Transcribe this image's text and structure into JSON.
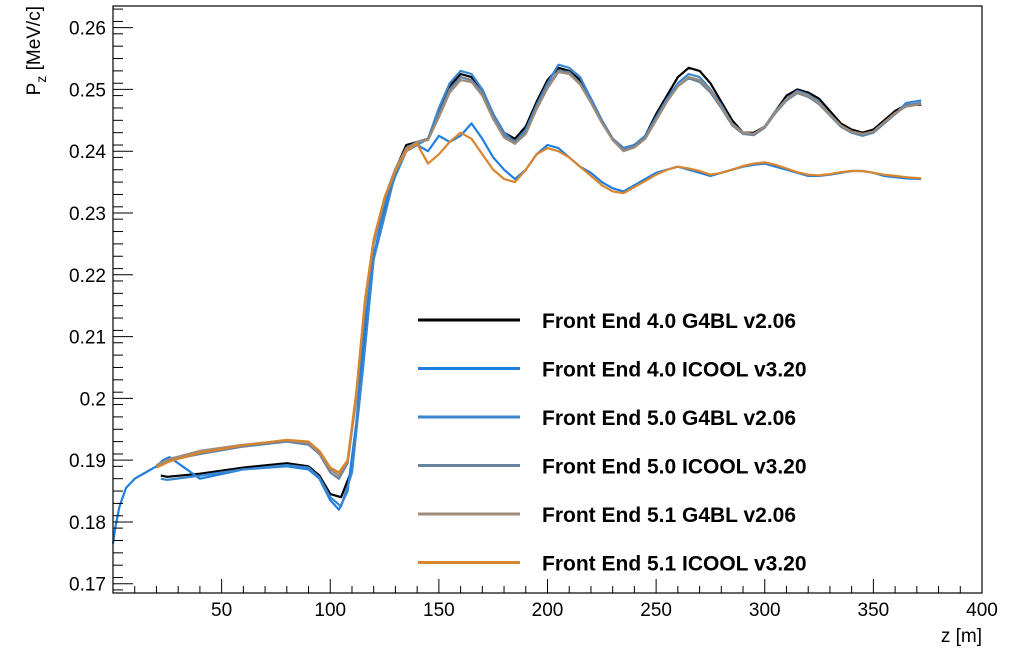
{
  "chart_data": {
    "type": "line",
    "title": "",
    "xlabel": "z [m]",
    "ylabel_main": "P",
    "ylabel_sub": "z",
    "ylabel_rest": " [MeV/c]",
    "xlim": [
      0,
      400
    ],
    "ylim": [
      0.1685,
      0.2635
    ],
    "x_ticks": [
      50,
      100,
      150,
      200,
      250,
      300,
      350,
      400
    ],
    "x_tick_labels": [
      "50",
      "100",
      "150",
      "200",
      "250",
      "300",
      "350",
      "400"
    ],
    "y_ticks": [
      0.17,
      0.18,
      0.19,
      0.2,
      0.21,
      0.22,
      0.23,
      0.24,
      0.25,
      0.26
    ],
    "y_tick_labels": [
      "0.17",
      "0.18",
      "0.19",
      "0.2",
      "0.21",
      "0.22",
      "0.23",
      "0.24",
      "0.25",
      "0.26"
    ],
    "grid": false,
    "legend_position": "lower-right",
    "series": [
      {
        "name": "Front End 4.0 G4BL v2.06",
        "color": "#000000",
        "x": [
          22,
          25,
          40,
          60,
          80,
          90,
          95,
          100,
          105,
          110,
          115,
          120,
          125,
          130,
          135,
          140,
          145,
          150,
          155,
          160,
          165,
          170,
          175,
          180,
          185,
          190,
          195,
          200,
          205,
          210,
          215,
          220,
          225,
          230,
          235,
          240,
          245,
          250,
          255,
          260,
          265,
          270,
          275,
          280,
          285,
          290,
          295,
          300,
          305,
          310,
          315,
          320,
          325,
          330,
          335,
          340,
          345,
          350,
          355,
          360,
          365,
          372
        ],
        "y": [
          0.1875,
          0.1873,
          0.1878,
          0.1888,
          0.1895,
          0.189,
          0.1875,
          0.1845,
          0.184,
          0.1885,
          0.205,
          0.223,
          0.23,
          0.237,
          0.241,
          0.2415,
          0.242,
          0.2465,
          0.2505,
          0.2525,
          0.252,
          0.25,
          0.246,
          0.243,
          0.242,
          0.244,
          0.248,
          0.2515,
          0.2535,
          0.253,
          0.2515,
          0.2485,
          0.245,
          0.242,
          0.2405,
          0.241,
          0.2425,
          0.246,
          0.249,
          0.252,
          0.2535,
          0.253,
          0.251,
          0.248,
          0.245,
          0.243,
          0.243,
          0.244,
          0.2465,
          0.249,
          0.25,
          0.2495,
          0.2485,
          0.2465,
          0.2445,
          0.2435,
          0.243,
          0.2435,
          0.245,
          0.2465,
          0.2475,
          0.2475
        ]
      },
      {
        "name": "Front End 4.0 ICOOL v3.20",
        "color": "#1f7fe0",
        "x": [
          0,
          1,
          3,
          6,
          10,
          15,
          20,
          23,
          26,
          40,
          60,
          80,
          90,
          95,
          100,
          104,
          108,
          112,
          116,
          120,
          125,
          130,
          135,
          140,
          145,
          150,
          155,
          160,
          165,
          170,
          175,
          180,
          185,
          190,
          195,
          200,
          205,
          210,
          215,
          220,
          225,
          230,
          235,
          240,
          245,
          250,
          255,
          260,
          265,
          270,
          275,
          280,
          285,
          290,
          295,
          300,
          305,
          310,
          315,
          320,
          325,
          330,
          335,
          340,
          345,
          350,
          355,
          360,
          365,
          372
        ],
        "y": [
          0.1765,
          0.179,
          0.1825,
          0.1855,
          0.187,
          0.188,
          0.189,
          0.19,
          0.1905,
          0.187,
          0.1885,
          0.189,
          0.1885,
          0.187,
          0.1835,
          0.182,
          0.185,
          0.196,
          0.212,
          0.223,
          0.231,
          0.236,
          0.24,
          0.241,
          0.24,
          0.2425,
          0.2415,
          0.2425,
          0.2445,
          0.242,
          0.239,
          0.237,
          0.2355,
          0.237,
          0.2395,
          0.241,
          0.2405,
          0.239,
          0.2375,
          0.2365,
          0.235,
          0.234,
          0.2335,
          0.2345,
          0.2355,
          0.2365,
          0.237,
          0.2375,
          0.237,
          0.2365,
          0.236,
          0.2365,
          0.237,
          0.2375,
          0.2378,
          0.238,
          0.2375,
          0.237,
          0.2365,
          0.236,
          0.236,
          0.2362,
          0.2365,
          0.2368,
          0.2368,
          0.2365,
          0.236,
          0.2358,
          0.2356,
          0.2355
        ]
      },
      {
        "name": "Front End 5.0 G4BL v2.06",
        "color": "#3a86cf",
        "x": [
          22,
          25,
          40,
          60,
          80,
          90,
          95,
          100,
          105,
          110,
          115,
          120,
          125,
          130,
          135,
          140,
          145,
          150,
          155,
          160,
          165,
          170,
          175,
          180,
          185,
          190,
          195,
          200,
          205,
          210,
          215,
          220,
          225,
          230,
          235,
          240,
          245,
          250,
          255,
          260,
          265,
          270,
          275,
          280,
          285,
          290,
          295,
          300,
          305,
          310,
          315,
          320,
          325,
          330,
          335,
          340,
          345,
          350,
          355,
          360,
          365,
          372
        ],
        "y": [
          0.187,
          0.1868,
          0.1875,
          0.1885,
          0.1892,
          0.1888,
          0.1872,
          0.184,
          0.1825,
          0.188,
          0.2045,
          0.2225,
          0.2295,
          0.2365,
          0.2405,
          0.241,
          0.242,
          0.247,
          0.251,
          0.253,
          0.2525,
          0.25,
          0.246,
          0.243,
          0.2415,
          0.2435,
          0.2475,
          0.251,
          0.254,
          0.2535,
          0.252,
          0.2485,
          0.245,
          0.242,
          0.2405,
          0.241,
          0.2425,
          0.2455,
          0.2485,
          0.251,
          0.2525,
          0.252,
          0.25,
          0.2475,
          0.2445,
          0.243,
          0.2428,
          0.244,
          0.2465,
          0.2485,
          0.2498,
          0.2492,
          0.248,
          0.246,
          0.244,
          0.243,
          0.2425,
          0.243,
          0.2445,
          0.246,
          0.2478,
          0.2482
        ]
      },
      {
        "name": "Front End 5.0 ICOOL v3.20",
        "color": "#6683a0",
        "x": [
          20,
          23,
          26,
          40,
          60,
          80,
          90,
          95,
          100,
          104,
          108,
          112,
          116,
          120,
          125,
          130,
          135,
          140,
          145,
          150,
          155,
          160,
          165,
          170,
          175,
          180,
          185,
          190,
          195,
          200,
          205,
          210,
          215,
          220,
          225,
          230,
          235,
          240,
          245,
          250,
          255,
          260,
          265,
          270,
          275,
          280,
          285,
          290,
          295,
          300,
          305,
          310,
          315,
          320,
          325,
          330,
          335,
          340,
          345,
          350,
          355,
          360,
          365,
          372
        ],
        "y": [
          0.189,
          0.1895,
          0.19,
          0.191,
          0.1922,
          0.193,
          0.1925,
          0.191,
          0.188,
          0.187,
          0.1895,
          0.2,
          0.215,
          0.225,
          0.232,
          0.237,
          0.2405,
          0.2415,
          0.242,
          0.246,
          0.25,
          0.252,
          0.2515,
          0.2495,
          0.2455,
          0.2425,
          0.2415,
          0.243,
          0.247,
          0.2505,
          0.253,
          0.2528,
          0.251,
          0.248,
          0.2448,
          0.242,
          0.2402,
          0.2408,
          0.2422,
          0.2452,
          0.2482,
          0.2505,
          0.2518,
          0.2512,
          0.2495,
          0.247,
          0.2442,
          0.2428,
          0.2426,
          0.2438,
          0.2462,
          0.2482,
          0.2494,
          0.2488,
          0.2476,
          0.2458,
          0.244,
          0.243,
          0.2426,
          0.243,
          0.2445,
          0.246,
          0.2474,
          0.2478
        ]
      },
      {
        "name": "Front End 5.1 G4BL v2.06",
        "color": "#9e8b7a",
        "x": [
          20,
          23,
          26,
          40,
          60,
          80,
          90,
          95,
          100,
          104,
          108,
          112,
          116,
          120,
          125,
          130,
          135,
          140,
          145,
          150,
          155,
          160,
          165,
          170,
          175,
          180,
          185,
          190,
          195,
          200,
          205,
          210,
          215,
          220,
          225,
          230,
          235,
          240,
          245,
          250,
          255,
          260,
          265,
          270,
          275,
          280,
          285,
          290,
          295,
          300,
          305,
          310,
          315,
          320,
          325,
          330,
          335,
          340,
          345,
          350,
          355,
          360,
          365,
          372
        ],
        "y": [
          0.1892,
          0.1897,
          0.1902,
          0.1915,
          0.1925,
          0.1932,
          0.1928,
          0.1912,
          0.1885,
          0.1875,
          0.1898,
          0.2005,
          0.2155,
          0.2255,
          0.2325,
          0.2372,
          0.2405,
          0.2415,
          0.2418,
          0.2455,
          0.2495,
          0.2515,
          0.2512,
          0.249,
          0.2452,
          0.2422,
          0.2412,
          0.2428,
          0.2468,
          0.2502,
          0.2528,
          0.2525,
          0.2508,
          0.2478,
          0.2446,
          0.2418,
          0.24,
          0.2406,
          0.242,
          0.245,
          0.248,
          0.2505,
          0.252,
          0.2515,
          0.2498,
          0.2472,
          0.2444,
          0.243,
          0.2428,
          0.244,
          0.2464,
          0.2484,
          0.2496,
          0.249,
          0.2478,
          0.246,
          0.2442,
          0.2432,
          0.2428,
          0.2432,
          0.2447,
          0.2462,
          0.2472,
          0.2476
        ]
      },
      {
        "name": "Front End 5.1 ICOOL v3.20",
        "color": "#d9852e",
        "x": [
          20,
          23,
          26,
          40,
          60,
          80,
          90,
          95,
          100,
          104,
          108,
          112,
          116,
          120,
          125,
          130,
          135,
          140,
          145,
          150,
          155,
          160,
          165,
          170,
          175,
          180,
          185,
          190,
          195,
          200,
          205,
          210,
          215,
          220,
          225,
          230,
          235,
          240,
          245,
          250,
          255,
          260,
          265,
          270,
          275,
          280,
          285,
          290,
          295,
          300,
          305,
          310,
          315,
          320,
          325,
          330,
          335,
          340,
          345,
          350,
          355,
          360,
          365,
          372
        ],
        "y": [
          0.1888,
          0.1893,
          0.1898,
          0.1912,
          0.1924,
          0.1933,
          0.193,
          0.1915,
          0.1888,
          0.188,
          0.19,
          0.201,
          0.216,
          0.2258,
          0.2325,
          0.2368,
          0.24,
          0.2412,
          0.238,
          0.2395,
          0.2415,
          0.243,
          0.242,
          0.2395,
          0.237,
          0.2355,
          0.235,
          0.237,
          0.2395,
          0.2405,
          0.24,
          0.239,
          0.2375,
          0.236,
          0.2345,
          0.2335,
          0.2332,
          0.2342,
          0.2352,
          0.2362,
          0.237,
          0.2375,
          0.2372,
          0.2368,
          0.2362,
          0.2365,
          0.237,
          0.2376,
          0.238,
          0.2382,
          0.2378,
          0.2372,
          0.2366,
          0.2362,
          0.2361,
          0.2363,
          0.2366,
          0.2368,
          0.2368,
          0.2365,
          0.2362,
          0.236,
          0.2358,
          0.2356
        ]
      }
    ]
  }
}
